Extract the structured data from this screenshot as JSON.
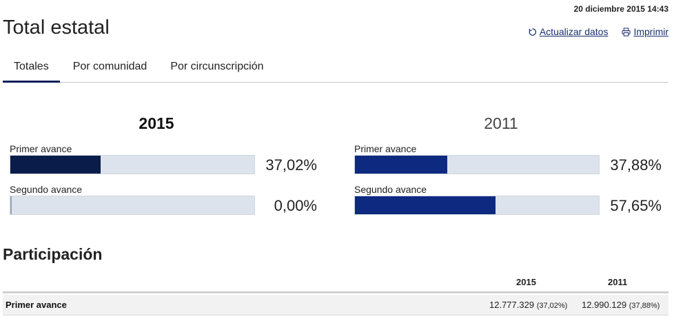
{
  "header": {
    "timestamp": "20 diciembre 2015 14:43",
    "title": "Total estatal",
    "refresh_label": " Actualizar datos",
    "print_label": "Imprimir"
  },
  "tabs": [
    {
      "label": "Totales",
      "active": true
    },
    {
      "label": "Por comunidad",
      "active": false
    },
    {
      "label": "Por circunscripción",
      "active": false
    }
  ],
  "years": [
    {
      "year": "2015",
      "bars": [
        {
          "label": "Primer avance",
          "value": 37.02,
          "display": "37,02%"
        },
        {
          "label": "Segundo avance",
          "value": 0.0,
          "display": "0,00%"
        }
      ],
      "color": "#0a1c4a"
    },
    {
      "year": "2011",
      "bars": [
        {
          "label": "Primer avance",
          "value": 37.88,
          "display": "37,88%"
        },
        {
          "label": "Segundo avance",
          "value": 57.65,
          "display": "57,65%"
        }
      ],
      "color": "#0d2a80"
    }
  ],
  "participation": {
    "title": "Participación",
    "columns": [
      "2015",
      "2011"
    ],
    "rows": [
      {
        "label": "Primer avance",
        "v2015": "12.777.329",
        "p2015": "(37,02%)",
        "v2011": "12.990.129",
        "p2011": "(37,88%)"
      }
    ]
  },
  "icons": {
    "refresh": "refresh-icon",
    "print": "print-icon"
  }
}
